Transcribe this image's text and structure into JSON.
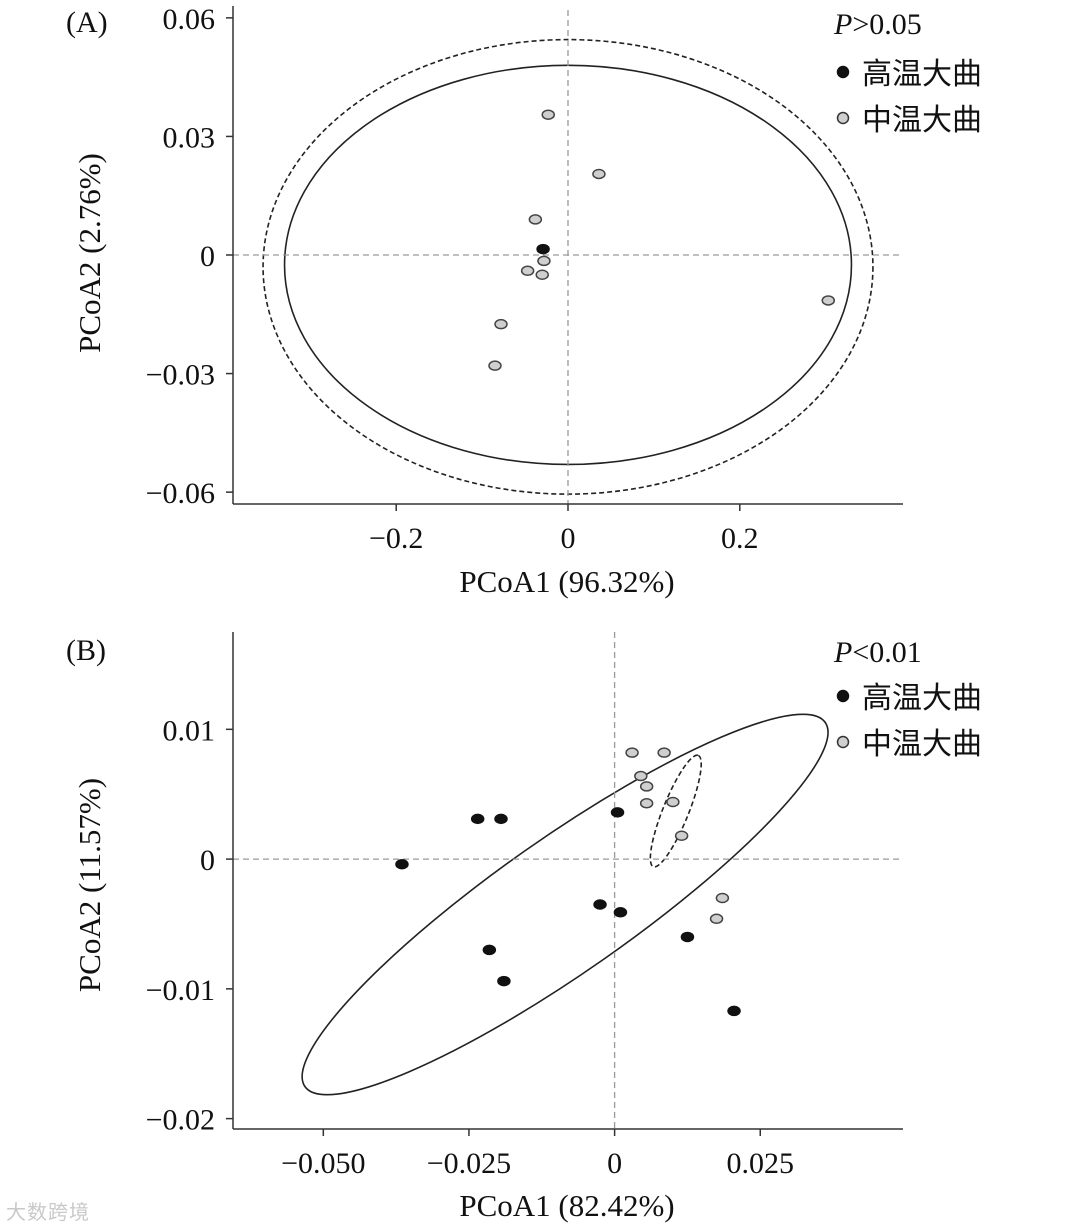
{
  "chart_data": [
    {
      "type": "scatter",
      "panel_label": "(A)",
      "xlabel": "PCoA1 (96.32%)",
      "ylabel": "PCoA2 (2.76%)",
      "xlim": [
        -0.39,
        0.39
      ],
      "ylim": [
        -0.063,
        0.063
      ],
      "xticks": [
        {
          "v": -0.2,
          "label": "−0.2"
        },
        {
          "v": 0,
          "label": "0"
        },
        {
          "v": 0.2,
          "label": "0.2"
        }
      ],
      "yticks": [
        {
          "v": 0.06,
          "label": "0.06"
        },
        {
          "v": 0.03,
          "label": "0.03"
        },
        {
          "v": 0,
          "label": "0"
        },
        {
          "v": -0.03,
          "label": "−0.03"
        },
        {
          "v": -0.06,
          "label": "−0.06"
        }
      ],
      "annotation": {
        "prefix": "P",
        "text": ">0.05"
      },
      "legend_position": "top-right",
      "series": [
        {
          "name": "高温大曲",
          "color": "#111111",
          "points": [
            [
              -0.029,
              0.0015
            ]
          ]
        },
        {
          "name": "中温大曲",
          "color": "#cfcfcf",
          "points": [
            [
              -0.023,
              0.0355
            ],
            [
              0.036,
              0.0205
            ],
            [
              -0.038,
              0.009
            ],
            [
              -0.028,
              -0.0015
            ],
            [
              -0.047,
              -0.004
            ],
            [
              -0.03,
              -0.005
            ],
            [
              -0.078,
              -0.0175
            ],
            [
              -0.085,
              -0.028
            ],
            [
              0.303,
              -0.0115
            ]
          ]
        }
      ],
      "ellipses": [
        {
          "series": "高温大曲",
          "style": "solid",
          "cx": 0.0,
          "cy": -0.0025,
          "rx": 0.33,
          "ry": 0.0505,
          "angle": 0
        },
        {
          "series": "中温大曲",
          "style": "dashed",
          "cx": 0.0,
          "cy": -0.003,
          "rx": 0.355,
          "ry": 0.0575,
          "angle": 0
        }
      ]
    },
    {
      "type": "scatter",
      "panel_label": "(B)",
      "xlabel": "PCoA1 (82.42%)",
      "ylabel": "PCoA2 (11.57%)",
      "xlim": [
        -0.0655,
        0.0495
      ],
      "ylim": [
        -0.0208,
        0.0175
      ],
      "xticks": [
        {
          "v": -0.05,
          "label": "−0.050"
        },
        {
          "v": -0.025,
          "label": "−0.025"
        },
        {
          "v": 0,
          "label": "0"
        },
        {
          "v": 0.025,
          "label": "0.025"
        }
      ],
      "yticks": [
        {
          "v": 0.01,
          "label": "0.01"
        },
        {
          "v": 0,
          "label": "0"
        },
        {
          "v": -0.01,
          "label": "−0.01"
        },
        {
          "v": -0.02,
          "label": "−0.02"
        }
      ],
      "annotation": {
        "prefix": "P",
        "text": "<0.01"
      },
      "legend_position": "top-right",
      "series": [
        {
          "name": "高温大曲",
          "color": "#111111",
          "points": [
            [
              -0.0365,
              -0.0004
            ],
            [
              -0.0235,
              0.0031
            ],
            [
              -0.0195,
              0.0031
            ],
            [
              -0.0215,
              -0.007
            ],
            [
              -0.019,
              -0.0094
            ],
            [
              0.0005,
              0.0036
            ],
            [
              -0.0025,
              -0.0035
            ],
            [
              0.001,
              -0.0041
            ],
            [
              0.0125,
              -0.006
            ],
            [
              0.0205,
              -0.0117
            ]
          ]
        },
        {
          "name": "中温大曲",
          "color": "#cfcfcf",
          "points": [
            [
              0.003,
              0.0082
            ],
            [
              0.0085,
              0.0082
            ],
            [
              0.0045,
              0.0064
            ],
            [
              0.0055,
              0.0056
            ],
            [
              0.0055,
              0.0043
            ],
            [
              0.01,
              0.0044
            ],
            [
              0.0115,
              0.0018
            ],
            [
              0.0185,
              -0.003
            ],
            [
              0.0175,
              -0.0046
            ]
          ]
        }
      ],
      "ellipses": [
        {
          "series": "高温大曲",
          "style": "solid",
          "cx": -0.0085,
          "cy": -0.0035,
          "rx": 0.0545,
          "ry": 0.0115,
          "angle": -35
        },
        {
          "series": "中温大曲",
          "style": "dashed",
          "cx": 0.0105,
          "cy": 0.0037,
          "rx": 0.0103,
          "ry": 0.0022,
          "angle": -68
        }
      ]
    }
  ],
  "watermark": "大数跨境"
}
